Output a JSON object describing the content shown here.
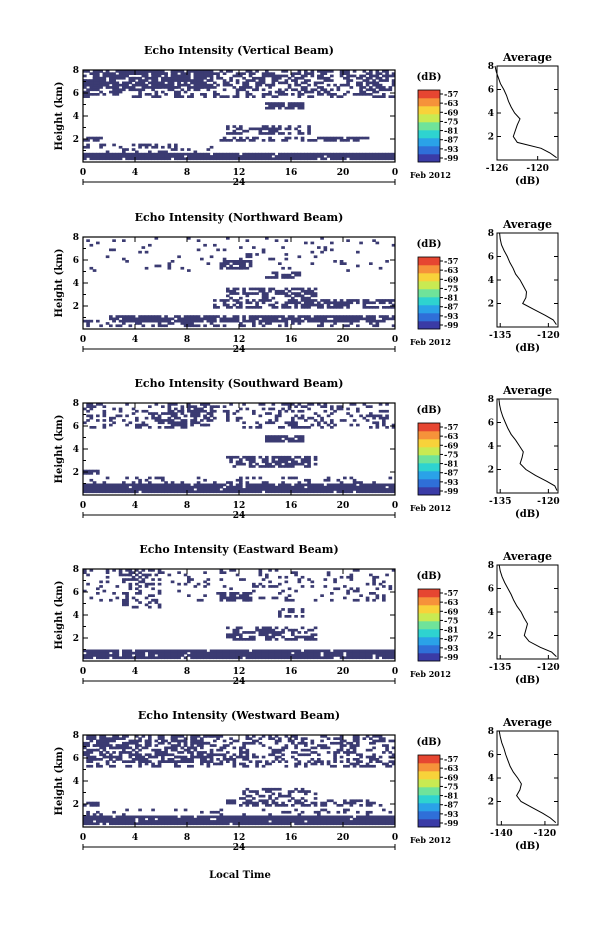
{
  "colors": {
    "echo": "#3b3b72",
    "colorbar": [
      "#3a3ba6",
      "#2f6fd8",
      "#2aa2e8",
      "#2ed3d0",
      "#6fe39a",
      "#c9ea52",
      "#f8d23a",
      "#f6923a",
      "#e64631"
    ]
  },
  "figure": {
    "xlabel_global": "Local Time"
  },
  "chart_data": [
    {
      "type": "heatmap",
      "title": "Echo Intensity (Vertical Beam)",
      "ylabel": "Height (km)",
      "xlim": [
        0,
        24
      ],
      "ylim": [
        0,
        8
      ],
      "x_ticks": [
        "0",
        "4",
        "8",
        "12",
        "16",
        "20",
        "0"
      ],
      "y_ticks": [
        "2",
        "4",
        "6",
        "8"
      ],
      "day_marker": "24",
      "date_label": "Feb 2012",
      "colorbar": {
        "unit": "(dB)",
        "ticks": [
          "-57",
          "-63",
          "-69",
          "-75",
          "-81",
          "-87",
          "-93",
          "-99"
        ]
      },
      "echo_regions": [
        {
          "x": [
            0,
            24
          ],
          "y": [
            0.2,
            0.8
          ],
          "density": 0.95
        },
        {
          "x": [
            0,
            10
          ],
          "y": [
            0.8,
            1.5
          ],
          "density": 0.25
        },
        {
          "x": [
            0,
            24
          ],
          "y": [
            5.5,
            8
          ],
          "density": 0.45
        },
        {
          "x": [
            0,
            10
          ],
          "y": [
            6.3,
            8
          ],
          "density": 0.6
        },
        {
          "x": [
            0,
            1.5
          ],
          "y": [
            1.8,
            2.2
          ],
          "density": 0.8
        },
        {
          "x": [
            10.5,
            22
          ],
          "y": [
            1.8,
            2.2
          ],
          "density": 0.55
        },
        {
          "x": [
            11,
            17.5
          ],
          "y": [
            2.4,
            3.2
          ],
          "density": 0.55
        },
        {
          "x": [
            14,
            17
          ],
          "y": [
            4.6,
            5.2
          ],
          "density": 0.85
        }
      ],
      "profile": {
        "title": "Average",
        "xlabel": "(dB)",
        "xlim": [
          -126,
          -117
        ],
        "xticks": [
          "-126",
          "-120"
        ],
        "ylim": [
          0,
          8
        ],
        "yticks": [
          "2",
          "4",
          "6",
          "8"
        ],
        "y": [
          0.2,
          0.6,
          1.0,
          1.5,
          2.0,
          2.5,
          3.0,
          3.5,
          4.0,
          4.5,
          5.0,
          5.5,
          6.0,
          6.5,
          7.0,
          7.5,
          8.0
        ],
        "x": [
          -117.2,
          -118.2,
          -119.5,
          -123.0,
          -123.6,
          -123.3,
          -123.0,
          -122.6,
          -123.4,
          -123.9,
          -124.3,
          -124.6,
          -125.0,
          -125.5,
          -125.8,
          -126.1,
          -126.3
        ]
      }
    },
    {
      "type": "heatmap",
      "title": "Echo Intensity (Northward Beam)",
      "ylabel": "Height (km)",
      "xlim": [
        0,
        24
      ],
      "ylim": [
        0,
        8
      ],
      "x_ticks": [
        "0",
        "4",
        "8",
        "12",
        "16",
        "20",
        "0"
      ],
      "y_ticks": [
        "2",
        "4",
        "6",
        "8"
      ],
      "day_marker": "24",
      "date_label": "Feb 2012",
      "colorbar": {
        "unit": "(dB)",
        "ticks": [
          "-57",
          "-63",
          "-69",
          "-75",
          "-81",
          "-87",
          "-93",
          "-99"
        ]
      },
      "echo_regions": [
        {
          "x": [
            0,
            24
          ],
          "y": [
            0.2,
            0.8
          ],
          "density": 0.35
        },
        {
          "x": [
            2,
            24
          ],
          "y": [
            0.6,
            1.2
          ],
          "density": 0.85
        },
        {
          "x": [
            10,
            24
          ],
          "y": [
            1.8,
            2.6
          ],
          "density": 0.6
        },
        {
          "x": [
            11,
            18
          ],
          "y": [
            2.6,
            3.6
          ],
          "density": 0.5
        },
        {
          "x": [
            10.5,
            13
          ],
          "y": [
            5.2,
            5.9
          ],
          "density": 0.8
        },
        {
          "x": [
            14,
            17
          ],
          "y": [
            4.3,
            4.9
          ],
          "density": 0.55
        },
        {
          "x": [
            0,
            24
          ],
          "y": [
            5,
            8
          ],
          "density": 0.06
        }
      ],
      "profile": {
        "title": "Average",
        "xlabel": "(dB)",
        "xlim": [
          -136,
          -117
        ],
        "xticks": [
          "-135",
          "-120"
        ],
        "ylim": [
          0,
          8
        ],
        "yticks": [
          "2",
          "4",
          "6",
          "8"
        ],
        "y": [
          0.2,
          0.6,
          1.0,
          1.5,
          2.0,
          2.5,
          3.0,
          3.5,
          4.0,
          4.5,
          5.0,
          5.5,
          6.0,
          6.5,
          7.0,
          7.5,
          8.0
        ],
        "x": [
          -117.5,
          -118.5,
          -121.0,
          -124.5,
          -128.0,
          -127.0,
          -126.8,
          -127.8,
          -128.8,
          -130.2,
          -131.0,
          -132.0,
          -132.8,
          -133.8,
          -134.6,
          -135.0,
          -135.2
        ]
      }
    },
    {
      "type": "heatmap",
      "title": "Echo Intensity (Southward Beam)",
      "ylabel": "Height (km)",
      "xlim": [
        0,
        24
      ],
      "ylim": [
        0,
        8
      ],
      "x_ticks": [
        "0",
        "4",
        "8",
        "12",
        "16",
        "20",
        "0"
      ],
      "y_ticks": [
        "2",
        "4",
        "6",
        "8"
      ],
      "day_marker": "24",
      "date_label": "Feb 2012",
      "colorbar": {
        "unit": "(dB)",
        "ticks": [
          "-57",
          "-63",
          "-69",
          "-75",
          "-81",
          "-87",
          "-93",
          "-99"
        ]
      },
      "echo_regions": [
        {
          "x": [
            0,
            24
          ],
          "y": [
            0.2,
            1.0
          ],
          "density": 0.95
        },
        {
          "x": [
            0,
            24
          ],
          "y": [
            1.0,
            1.6
          ],
          "density": 0.2
        },
        {
          "x": [
            0,
            24
          ],
          "y": [
            5.8,
            8
          ],
          "density": 0.25
        },
        {
          "x": [
            6.5,
            10
          ],
          "y": [
            6,
            8
          ],
          "density": 0.5
        },
        {
          "x": [
            0,
            1.2
          ],
          "y": [
            1.8,
            2.2
          ],
          "density": 0.8
        },
        {
          "x": [
            11,
            18
          ],
          "y": [
            2.4,
            3.4
          ],
          "density": 0.5
        },
        {
          "x": [
            14,
            17
          ],
          "y": [
            4.6,
            5.1
          ],
          "density": 0.8
        }
      ],
      "profile": {
        "title": "Average",
        "xlabel": "(dB)",
        "xlim": [
          -136,
          -117
        ],
        "xticks": [
          "-135",
          "-120"
        ],
        "ylim": [
          0,
          8
        ],
        "yticks": [
          "2",
          "4",
          "6",
          "8"
        ],
        "y": [
          0.2,
          0.6,
          1.0,
          1.5,
          2.0,
          2.5,
          3.0,
          3.5,
          4.0,
          4.5,
          5.0,
          5.5,
          6.0,
          6.5,
          7.0,
          7.5,
          8.0
        ],
        "x": [
          -117.3,
          -118.0,
          -120.5,
          -124.0,
          -127.0,
          -128.8,
          -128.2,
          -127.8,
          -129.0,
          -130.2,
          -131.6,
          -132.6,
          -133.4,
          -134.2,
          -134.8,
          -135.2,
          -135.4
        ]
      }
    },
    {
      "type": "heatmap",
      "title": "Echo Intensity (Eastward Beam)",
      "ylabel": "Height (km)",
      "xlim": [
        0,
        24
      ],
      "ylim": [
        0,
        8
      ],
      "x_ticks": [
        "0",
        "4",
        "8",
        "12",
        "16",
        "20",
        "0"
      ],
      "y_ticks": [
        "2",
        "4",
        "6",
        "8"
      ],
      "day_marker": "24",
      "date_label": "Feb 2012",
      "colorbar": {
        "unit": "(dB)",
        "ticks": [
          "-57",
          "-63",
          "-69",
          "-75",
          "-81",
          "-87",
          "-93",
          "-99"
        ]
      },
      "echo_regions": [
        {
          "x": [
            0,
            24
          ],
          "y": [
            0.2,
            0.9
          ],
          "density": 0.9
        },
        {
          "x": [
            0,
            24
          ],
          "y": [
            5.2,
            8
          ],
          "density": 0.15
        },
        {
          "x": [
            3,
            6
          ],
          "y": [
            4.5,
            8
          ],
          "density": 0.25
        },
        {
          "x": [
            10.5,
            13
          ],
          "y": [
            5.1,
            6.0
          ],
          "density": 0.85
        },
        {
          "x": [
            11,
            18
          ],
          "y": [
            1.8,
            3.0
          ],
          "density": 0.5
        },
        {
          "x": [
            15,
            17
          ],
          "y": [
            3.8,
            4.6
          ],
          "density": 0.4
        }
      ],
      "profile": {
        "title": "Average",
        "xlabel": "(dB)",
        "xlim": [
          -136,
          -117
        ],
        "xticks": [
          "-135",
          "-120"
        ],
        "ylim": [
          0,
          8
        ],
        "yticks": [
          "2",
          "4",
          "6",
          "8"
        ],
        "y": [
          0.2,
          0.6,
          1.0,
          1.5,
          2.0,
          2.5,
          3.0,
          3.5,
          4.0,
          4.5,
          5.0,
          5.5,
          6.0,
          6.5,
          7.0,
          7.5,
          8.0
        ],
        "x": [
          -117.5,
          -119.0,
          -122.5,
          -126.0,
          -127.5,
          -127.0,
          -126.5,
          -127.6,
          -128.5,
          -129.8,
          -130.8,
          -131.6,
          -132.6,
          -133.6,
          -134.4,
          -135.0,
          -135.3
        ]
      }
    },
    {
      "type": "heatmap",
      "title": "Echo Intensity (Westward Beam)",
      "ylabel": "Height (km)",
      "xlim": [
        0,
        24
      ],
      "ylim": [
        0,
        8
      ],
      "x_ticks": [
        "0",
        "4",
        "8",
        "12",
        "16",
        "20",
        "0"
      ],
      "y_ticks": [
        "2",
        "4",
        "6",
        "8"
      ],
      "day_marker": "24",
      "date_label": "Feb 2012",
      "colorbar": {
        "unit": "(dB)",
        "ticks": [
          "-57",
          "-63",
          "-69",
          "-75",
          "-81",
          "-87",
          "-93",
          "-99"
        ]
      },
      "echo_regions": [
        {
          "x": [
            0,
            24
          ],
          "y": [
            0.2,
            0.9
          ],
          "density": 0.95
        },
        {
          "x": [
            0,
            24
          ],
          "y": [
            0.9,
            1.6
          ],
          "density": 0.15
        },
        {
          "x": [
            0,
            24
          ],
          "y": [
            5.2,
            8
          ],
          "density": 0.35
        },
        {
          "x": [
            0,
            10
          ],
          "y": [
            5.5,
            8
          ],
          "density": 0.35
        },
        {
          "x": [
            0,
            1.2
          ],
          "y": [
            1.8,
            2.2
          ],
          "density": 0.8
        },
        {
          "x": [
            11,
            23
          ],
          "y": [
            1.8,
            2.4
          ],
          "density": 0.5
        },
        {
          "x": [
            12,
            18
          ],
          "y": [
            2.4,
            3.4
          ],
          "density": 0.35
        }
      ],
      "profile": {
        "title": "Average",
        "xlabel": "(dB)",
        "xlim": [
          -142,
          -114
        ],
        "xticks": [
          "-140",
          "-120"
        ],
        "ylim": [
          0,
          8
        ],
        "yticks": [
          "2",
          "4",
          "6",
          "8"
        ],
        "y": [
          0.2,
          0.6,
          1.0,
          1.5,
          2.0,
          2.5,
          3.0,
          3.5,
          4.0,
          4.5,
          5.0,
          5.5,
          6.0,
          6.5,
          7.0,
          7.5,
          8.0
        ],
        "x": [
          -115.0,
          -117.5,
          -121.0,
          -126.0,
          -131.0,
          -133.0,
          -131.5,
          -130.8,
          -132.5,
          -134.5,
          -136.0,
          -137.0,
          -138.0,
          -138.8,
          -139.8,
          -140.5,
          -141.0
        ]
      }
    }
  ]
}
